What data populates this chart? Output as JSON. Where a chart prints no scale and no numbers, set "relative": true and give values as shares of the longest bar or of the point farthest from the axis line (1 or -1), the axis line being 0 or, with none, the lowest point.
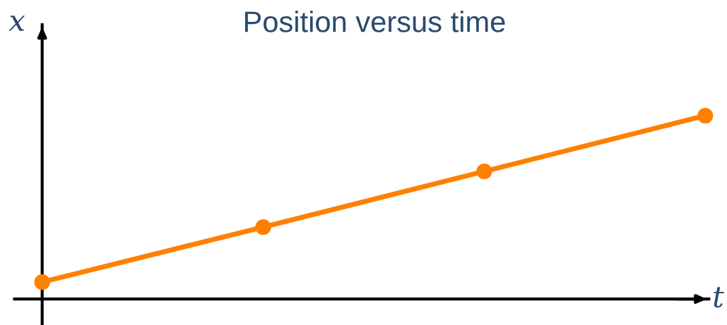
{
  "chart_data": {
    "type": "line",
    "title": "Position versus time",
    "xlabel": "t",
    "ylabel": "x",
    "relative": true,
    "categories": [
      null,
      null,
      null,
      null
    ],
    "series": [
      {
        "color": "#ff8000",
        "values": [
          0.092,
          0.392,
          0.696,
          1.0
        ]
      }
    ],
    "marker": "circle",
    "line_style": "solid",
    "grid": false,
    "legend": false
  }
}
